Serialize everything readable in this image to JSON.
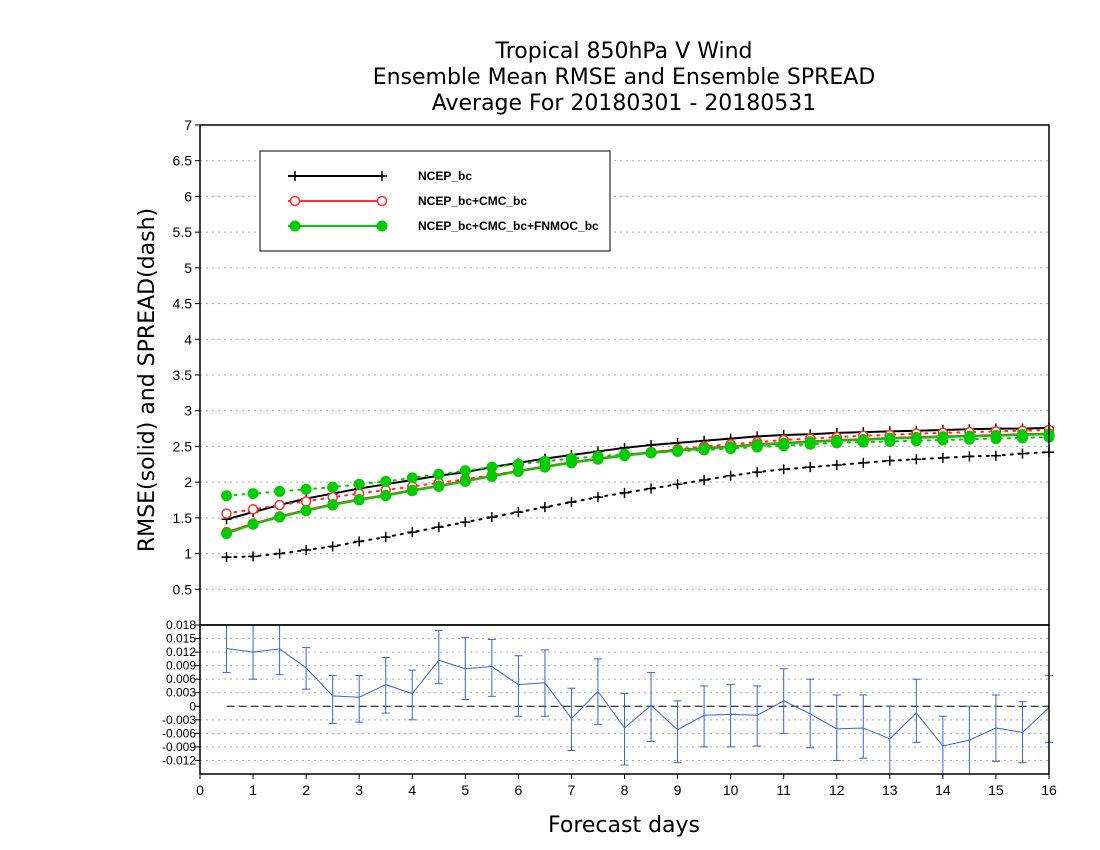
{
  "chart_data": [
    {
      "type": "line",
      "title": [
        "Tropical 850hPa V Wind",
        "Ensemble Mean RMSE and Ensemble SPREAD",
        "Average For 20180301 - 20180531"
      ],
      "ylabel": "RMSE(solid)  and  SPREAD(dash)",
      "xlim": [
        0,
        16
      ],
      "ylim": [
        0,
        7
      ],
      "yticks": [
        "0.5",
        "1",
        "1.5",
        "2",
        "2.5",
        "3",
        "3.5",
        "4",
        "4.5",
        "5",
        "5.5",
        "6",
        "6.5",
        "7"
      ],
      "grid": true,
      "legend_position": "top-left",
      "x": [
        0.5,
        1,
        1.5,
        2,
        2.5,
        3,
        3.5,
        4,
        4.5,
        5,
        5.5,
        6,
        6.5,
        7,
        7.5,
        8,
        8.5,
        9,
        9.5,
        10,
        10.5,
        11,
        11.5,
        12,
        12.5,
        13,
        13.5,
        14,
        14.5,
        15,
        15.5,
        16
      ],
      "series": [
        {
          "name": "NCEP_bc",
          "color": "#000000",
          "marker": "plus",
          "rmse": [
            1.48,
            1.58,
            1.68,
            1.77,
            1.84,
            1.91,
            1.97,
            2.03,
            2.09,
            2.14,
            2.21,
            2.27,
            2.33,
            2.38,
            2.43,
            2.48,
            2.52,
            2.55,
            2.58,
            2.61,
            2.64,
            2.66,
            2.67,
            2.69,
            2.7,
            2.71,
            2.72,
            2.73,
            2.74,
            2.75,
            2.75,
            2.76
          ],
          "spread": [
            0.95,
            0.96,
            1.0,
            1.05,
            1.1,
            1.17,
            1.23,
            1.3,
            1.37,
            1.44,
            1.51,
            1.58,
            1.65,
            1.72,
            1.79,
            1.85,
            1.91,
            1.97,
            2.03,
            2.09,
            2.14,
            2.18,
            2.21,
            2.24,
            2.27,
            2.3,
            2.32,
            2.34,
            2.36,
            2.37,
            2.4,
            2.42
          ]
        },
        {
          "name": "NCEP_bc+CMC_bc",
          "color": "#ff3030",
          "marker": "open-circle",
          "rmse": [
            1.3,
            1.42,
            1.52,
            1.61,
            1.69,
            1.76,
            1.82,
            1.89,
            1.95,
            2.02,
            2.09,
            2.16,
            2.22,
            2.28,
            2.33,
            2.38,
            2.42,
            2.45,
            2.48,
            2.5,
            2.53,
            2.55,
            2.57,
            2.59,
            2.6,
            2.62,
            2.63,
            2.64,
            2.65,
            2.66,
            2.67,
            2.68
          ],
          "spread": [
            1.56,
            1.62,
            1.68,
            1.73,
            1.79,
            1.84,
            1.89,
            1.94,
            1.99,
            2.04,
            2.1,
            2.16,
            2.22,
            2.27,
            2.33,
            2.38,
            2.42,
            2.46,
            2.5,
            2.53,
            2.56,
            2.59,
            2.61,
            2.63,
            2.65,
            2.66,
            2.68,
            2.69,
            2.7,
            2.71,
            2.72,
            2.73
          ]
        },
        {
          "name": "NCEP_bc+CMC_bc+FNMOC_bc",
          "color": "#00cc00",
          "marker": "filled-circle",
          "rmse": [
            1.28,
            1.41,
            1.51,
            1.6,
            1.68,
            1.75,
            1.81,
            1.88,
            1.94,
            2.01,
            2.08,
            2.15,
            2.21,
            2.27,
            2.32,
            2.37,
            2.41,
            2.44,
            2.47,
            2.49,
            2.52,
            2.54,
            2.56,
            2.58,
            2.59,
            2.61,
            2.62,
            2.63,
            2.64,
            2.65,
            2.66,
            2.67
          ],
          "spread": [
            1.81,
            1.84,
            1.87,
            1.9,
            1.93,
            1.97,
            2.01,
            2.06,
            2.11,
            2.16,
            2.21,
            2.25,
            2.29,
            2.33,
            2.36,
            2.39,
            2.41,
            2.43,
            2.45,
            2.47,
            2.49,
            2.51,
            2.53,
            2.55,
            2.56,
            2.57,
            2.58,
            2.59,
            2.6,
            2.61,
            2.62,
            2.63
          ]
        }
      ]
    },
    {
      "type": "line",
      "xlabel": "Forecast days",
      "xticks": [
        "0",
        "1",
        "2",
        "3",
        "4",
        "5",
        "6",
        "7",
        "8",
        "9",
        "10",
        "11",
        "12",
        "13",
        "14",
        "15",
        "16"
      ],
      "xlim": [
        0,
        16
      ],
      "ylim": [
        -0.015,
        0.018
      ],
      "yticks": [
        "0.018",
        "0.015",
        "0.012",
        "0.009",
        "0.006",
        "0.003",
        "0",
        "-0.003",
        "-0.006",
        "-0.009",
        "-0.012"
      ],
      "grid": true,
      "color": "#3366dd",
      "x": [
        0.5,
        1,
        1.5,
        2,
        2.5,
        3,
        3.5,
        4,
        4.5,
        5,
        5.5,
        6,
        6.5,
        7,
        7.5,
        8,
        8.5,
        9,
        9.5,
        10,
        10.5,
        11,
        11.5,
        12,
        12.5,
        13,
        13.5,
        14,
        14.5,
        15,
        15.5,
        16
      ],
      "values": [
        0.0128,
        0.012,
        0.0127,
        0.0085,
        0.0023,
        0.002,
        0.0048,
        0.0028,
        0.0102,
        0.0083,
        0.0088,
        0.0048,
        0.0052,
        -0.0027,
        0.0033,
        -0.0048,
        0.0002,
        -0.0052,
        -0.002,
        -0.0018,
        -0.002,
        0.0012,
        -0.0017,
        -0.005,
        -0.0048,
        -0.0072,
        -0.0015,
        -0.0088,
        -0.0075,
        -0.0048,
        -0.0058,
        -0.0003
      ],
      "err_low": [
        0.0075,
        0.006,
        0.007,
        0.0038,
        -0.0038,
        -0.0035,
        -0.0015,
        -0.003,
        0.005,
        0.0015,
        0.0022,
        -0.0022,
        -0.0022,
        -0.0098,
        -0.004,
        -0.013,
        -0.0078,
        -0.0125,
        -0.009,
        -0.009,
        -0.0088,
        -0.006,
        -0.0092,
        -0.012,
        -0.0115,
        -0.015,
        -0.008,
        -0.015,
        -0.015,
        -0.0122,
        -0.0125,
        -0.008
      ],
      "err_high": [
        0.018,
        0.018,
        0.018,
        0.013,
        0.0068,
        0.0068,
        0.0108,
        0.008,
        0.0168,
        0.0152,
        0.0148,
        0.0112,
        0.0125,
        0.004,
        0.0105,
        0.0028,
        0.0075,
        0.0012,
        0.0045,
        0.0048,
        0.0045,
        0.0083,
        0.006,
        0.0025,
        0.0025,
        0.0,
        0.006,
        -0.0022,
        0.0,
        0.0025,
        0.001,
        0.0068
      ]
    }
  ]
}
